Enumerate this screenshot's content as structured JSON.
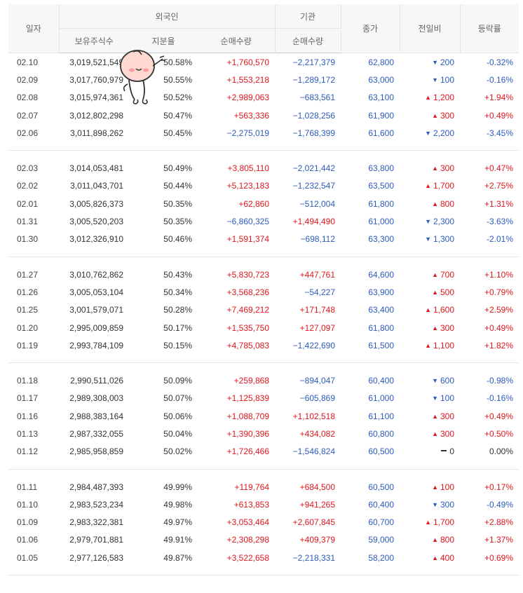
{
  "headers": {
    "date": "일자",
    "foreign": "외국인",
    "institution": "기관",
    "close": "종가",
    "change": "전일비",
    "rate": "등락률",
    "holdings": "보유주식수",
    "share": "지분율",
    "foreign_net": "순매수량",
    "inst_net": "순매수량"
  },
  "groups": [
    [
      {
        "date": "02.10",
        "holdings": "3,019,521,549",
        "share": "50.58%",
        "foreign_net": "+1,760,570",
        "inst_net": "−2,217,379",
        "close": "62,800",
        "change": "200",
        "dir": "down",
        "rate": "-0.32%"
      },
      {
        "date": "02.09",
        "holdings": "3,017,760,979",
        "share": "50.55%",
        "foreign_net": "+1,553,218",
        "inst_net": "−1,289,172",
        "close": "63,000",
        "change": "100",
        "dir": "down",
        "rate": "-0.16%"
      },
      {
        "date": "02.08",
        "holdings": "3,015,974,361",
        "share": "50.52%",
        "foreign_net": "+2,989,063",
        "inst_net": "−683,561",
        "close": "63,100",
        "change": "1,200",
        "dir": "up",
        "rate": "+1.94%"
      },
      {
        "date": "02.07",
        "holdings": "3,012,802,298",
        "share": "50.47%",
        "foreign_net": "+563,336",
        "inst_net": "−1,028,256",
        "close": "61,900",
        "change": "300",
        "dir": "up",
        "rate": "+0.49%"
      },
      {
        "date": "02.06",
        "holdings": "3,011,898,262",
        "share": "50.45%",
        "foreign_net": "−2,275,019",
        "inst_net": "−1,768,399",
        "close": "61,600",
        "change": "2,200",
        "dir": "down",
        "rate": "-3.45%"
      }
    ],
    [
      {
        "date": "02.03",
        "holdings": "3,014,053,481",
        "share": "50.49%",
        "foreign_net": "+3,805,110",
        "inst_net": "−2,021,442",
        "close": "63,800",
        "change": "300",
        "dir": "up",
        "rate": "+0.47%"
      },
      {
        "date": "02.02",
        "holdings": "3,011,043,701",
        "share": "50.44%",
        "foreign_net": "+5,123,183",
        "inst_net": "−1,232,547",
        "close": "63,500",
        "change": "1,700",
        "dir": "up",
        "rate": "+2.75%"
      },
      {
        "date": "02.01",
        "holdings": "3,005,826,373",
        "share": "50.35%",
        "foreign_net": "+62,860",
        "inst_net": "−512,004",
        "close": "61,800",
        "change": "800",
        "dir": "up",
        "rate": "+1.31%"
      },
      {
        "date": "01.31",
        "holdings": "3,005,520,203",
        "share": "50.35%",
        "foreign_net": "−6,860,325",
        "inst_net": "+1,494,490",
        "close": "61,000",
        "change": "2,300",
        "dir": "down",
        "rate": "-3.63%"
      },
      {
        "date": "01.30",
        "holdings": "3,012,326,910",
        "share": "50.46%",
        "foreign_net": "+1,591,374",
        "inst_net": "−698,112",
        "close": "63,300",
        "change": "1,300",
        "dir": "down",
        "rate": "-2.01%"
      }
    ],
    [
      {
        "date": "01.27",
        "holdings": "3,010,762,862",
        "share": "50.43%",
        "foreign_net": "+5,830,723",
        "inst_net": "+447,761",
        "close": "64,600",
        "change": "700",
        "dir": "up",
        "rate": "+1.10%"
      },
      {
        "date": "01.26",
        "holdings": "3,005,053,104",
        "share": "50.34%",
        "foreign_net": "+3,568,236",
        "inst_net": "−54,227",
        "close": "63,900",
        "change": "500",
        "dir": "up",
        "rate": "+0.79%"
      },
      {
        "date": "01.25",
        "holdings": "3,001,579,071",
        "share": "50.28%",
        "foreign_net": "+7,469,212",
        "inst_net": "+171,748",
        "close": "63,400",
        "change": "1,600",
        "dir": "up",
        "rate": "+2.59%"
      },
      {
        "date": "01.20",
        "holdings": "2,995,009,859",
        "share": "50.17%",
        "foreign_net": "+1,535,750",
        "inst_net": "+127,097",
        "close": "61,800",
        "change": "300",
        "dir": "up",
        "rate": "+0.49%"
      },
      {
        "date": "01.19",
        "holdings": "2,993,784,109",
        "share": "50.15%",
        "foreign_net": "+4,785,083",
        "inst_net": "−1,422,690",
        "close": "61,500",
        "change": "1,100",
        "dir": "up",
        "rate": "+1.82%"
      }
    ],
    [
      {
        "date": "01.18",
        "holdings": "2,990,511,026",
        "share": "50.09%",
        "foreign_net": "+259,868",
        "inst_net": "−894,047",
        "close": "60,400",
        "change": "600",
        "dir": "down",
        "rate": "-0.98%"
      },
      {
        "date": "01.17",
        "holdings": "2,989,308,003",
        "share": "50.07%",
        "foreign_net": "+1,125,839",
        "inst_net": "−605,869",
        "close": "61,000",
        "change": "100",
        "dir": "down",
        "rate": "-0.16%"
      },
      {
        "date": "01.16",
        "holdings": "2,988,383,164",
        "share": "50.06%",
        "foreign_net": "+1,088,709",
        "inst_net": "+1,102,518",
        "close": "61,100",
        "change": "300",
        "dir": "up",
        "rate": "+0.49%"
      },
      {
        "date": "01.13",
        "holdings": "2,987,332,055",
        "share": "50.04%",
        "foreign_net": "+1,390,396",
        "inst_net": "+434,082",
        "close": "60,800",
        "change": "300",
        "dir": "up",
        "rate": "+0.50%"
      },
      {
        "date": "01.12",
        "holdings": "2,985,958,859",
        "share": "50.02%",
        "foreign_net": "+1,726,466",
        "inst_net": "−1,546,824",
        "close": "60,500",
        "change": "0",
        "dir": "flat",
        "rate": "0.00%"
      }
    ],
    [
      {
        "date": "01.11",
        "holdings": "2,984,487,393",
        "share": "49.99%",
        "foreign_net": "+119,764",
        "inst_net": "+684,500",
        "close": "60,500",
        "change": "100",
        "dir": "up",
        "rate": "+0.17%"
      },
      {
        "date": "01.10",
        "holdings": "2,983,523,234",
        "share": "49.98%",
        "foreign_net": "+613,853",
        "inst_net": "+941,265",
        "close": "60,400",
        "change": "300",
        "dir": "down",
        "rate": "-0.49%"
      },
      {
        "date": "01.09",
        "holdings": "2,983,322,381",
        "share": "49.97%",
        "foreign_net": "+3,053,464",
        "inst_net": "+2,607,845",
        "close": "60,700",
        "change": "1,700",
        "dir": "up",
        "rate": "+2.88%"
      },
      {
        "date": "01.06",
        "holdings": "2,979,701,881",
        "share": "49.91%",
        "foreign_net": "+2,308,298",
        "inst_net": "+409,379",
        "close": "59,000",
        "change": "800",
        "dir": "up",
        "rate": "+1.37%"
      },
      {
        "date": "01.05",
        "holdings": "2,977,126,583",
        "share": "49.87%",
        "foreign_net": "+3,522,658",
        "inst_net": "−2,218,331",
        "close": "58,200",
        "change": "400",
        "dir": "up",
        "rate": "+0.69%"
      }
    ]
  ],
  "colors": {
    "up": "#e0161d",
    "down": "#2c5bbd",
    "header_bg": "#f6f7f9"
  },
  "icons": {
    "up": "triangle-up-icon",
    "down": "triangle-down-icon",
    "flat": "dash-icon",
    "mascot": "peach-character-sticker"
  }
}
